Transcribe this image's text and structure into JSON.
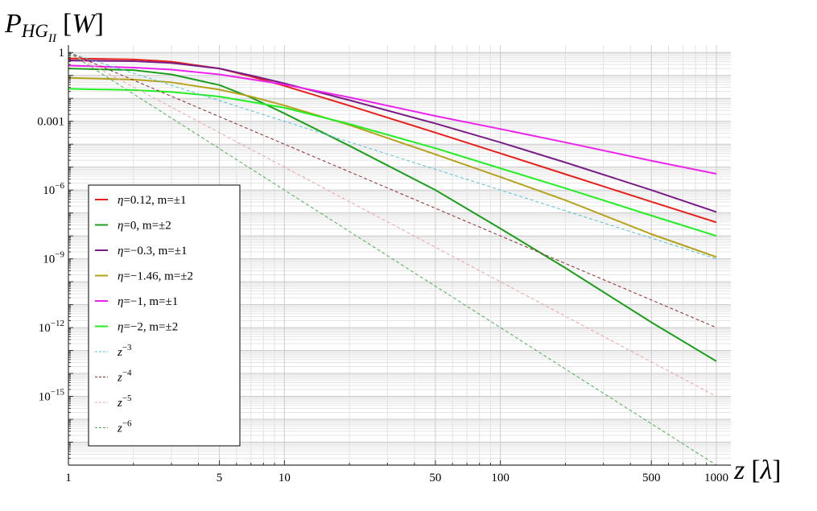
{
  "chart_data": {
    "type": "line",
    "title": "",
    "xlabel": {
      "var": "z",
      "unit": "λ"
    },
    "ylabel": {
      "var": "P",
      "sub": "HG",
      "subsub": "II",
      "unit": "W"
    },
    "x_scale": "log",
    "y_scale": "log",
    "xlim": [
      1,
      1000
    ],
    "ylim": [
      1e-18,
      1.3
    ],
    "grid": true,
    "legend_position": "left",
    "x_ticks": [
      {
        "value": 1,
        "label": "1"
      },
      {
        "value": 5,
        "label": "5"
      },
      {
        "value": 10,
        "label": "10"
      },
      {
        "value": 50,
        "label": "50"
      },
      {
        "value": 100,
        "label": "100"
      },
      {
        "value": 500,
        "label": "500"
      },
      {
        "value": 1000,
        "label": "1000"
      }
    ],
    "y_ticks": [
      {
        "value": 1,
        "label": "1",
        "base": "",
        "exp": ""
      },
      {
        "value": 0.001,
        "label": "0.001",
        "base": "",
        "exp": ""
      },
      {
        "value": 1e-06,
        "label": "",
        "base": "10",
        "exp": "−6"
      },
      {
        "value": 1e-09,
        "label": "",
        "base": "10",
        "exp": "−9"
      },
      {
        "value": 1e-12,
        "label": "",
        "base": "10",
        "exp": "−12"
      },
      {
        "value": 1e-15,
        "label": "",
        "base": "10",
        "exp": "−15"
      }
    ],
    "series": [
      {
        "name": "η=0.12, m=±1",
        "sym": "η",
        "rest": "=0.12, m=±1",
        "color": "#e8201c",
        "style": "solid",
        "x": [
          1,
          2,
          3,
          5,
          7,
          10,
          20,
          50,
          100,
          200,
          500,
          1000
        ],
        "y": [
          0.55,
          0.5,
          0.4,
          0.2,
          0.09,
          0.035,
          0.0048,
          0.00032,
          4e-05,
          4.9e-06,
          3.1e-07,
          3.9e-08
        ]
      },
      {
        "name": "η=0, m=±2",
        "sym": "η",
        "rest": "=0, m=±2",
        "color": "#1c9e1c",
        "style": "solid",
        "x": [
          1,
          2,
          3,
          5,
          7,
          10,
          20,
          50,
          100,
          200,
          500,
          1000
        ],
        "y": [
          0.2,
          0.17,
          0.11,
          0.038,
          0.011,
          0.0022,
          8.5e-05,
          1e-06,
          2.1e-08,
          4e-10,
          1.7e-12,
          3.4e-14
        ]
      },
      {
        "name": "η=−0.3, m=±1",
        "sym": "η",
        "rest": "=−0.3, m=±1",
        "color": "#7a1c86",
        "style": "solid",
        "x": [
          1,
          2,
          3,
          5,
          7,
          10,
          20,
          50,
          100,
          200,
          500,
          1000
        ],
        "y": [
          0.45,
          0.42,
          0.35,
          0.2,
          0.1,
          0.045,
          0.0083,
          0.0008,
          0.00012,
          1.6e-05,
          1e-06,
          1.1e-07
        ]
      },
      {
        "name": "η=−1.46, m=±2",
        "sym": "η",
        "rest": "=−1.46, m=±2",
        "color": "#b5a21c",
        "style": "solid",
        "x": [
          1,
          2,
          3,
          5,
          7,
          10,
          20,
          50,
          100,
          200,
          500,
          1000
        ],
        "y": [
          0.078,
          0.066,
          0.05,
          0.024,
          0.012,
          0.0049,
          0.00069,
          3.6e-05,
          3.7e-06,
          3.6e-07,
          1.2e-08,
          1.2e-09
        ]
      },
      {
        "name": "η=−1, m=±1",
        "sym": "η",
        "rest": "=−1, m=±1",
        "color": "#ee22ee",
        "style": "solid",
        "x": [
          1,
          2,
          3,
          5,
          7,
          10,
          20,
          50,
          100,
          200,
          500,
          1000
        ],
        "y": [
          0.27,
          0.22,
          0.18,
          0.11,
          0.068,
          0.04,
          0.011,
          0.0017,
          0.00046,
          0.00012,
          1.9e-05,
          5.1e-06
        ]
      },
      {
        "name": "η=−2, m=±2",
        "sym": "η",
        "rest": "=−2, m=±2",
        "color": "#22ee22",
        "style": "solid",
        "x": [
          1,
          2,
          3,
          5,
          7,
          10,
          20,
          50,
          100,
          200,
          500,
          1000
        ],
        "y": [
          0.026,
          0.023,
          0.019,
          0.012,
          0.007,
          0.0039,
          0.00076,
          6.7e-05,
          8.9e-06,
          1.2e-06,
          7.7e-08,
          1e-08
        ]
      },
      {
        "name": "z−3",
        "sym": "z",
        "rest": "",
        "exp": "−3",
        "color": "#4fc3cf",
        "style": "dashed",
        "x": [
          1,
          1000
        ],
        "y": [
          1.0,
          1e-09
        ]
      },
      {
        "name": "z−4",
        "sym": "z",
        "rest": "",
        "exp": "−4",
        "color": "#8b2a2a",
        "style": "dashed",
        "x": [
          1,
          1000
        ],
        "y": [
          1.0,
          1e-12
        ]
      },
      {
        "name": "z−5",
        "sym": "z",
        "rest": "",
        "exp": "−5",
        "color": "#f0a0a0",
        "style": "dashed",
        "x": [
          1,
          1000
        ],
        "y": [
          1.0,
          1e-15
        ]
      },
      {
        "name": "z−6",
        "sym": "z",
        "rest": "",
        "exp": "−6",
        "color": "#4caf50",
        "style": "dashed",
        "x": [
          1,
          1000
        ],
        "y": [
          1.0,
          1e-18
        ]
      }
    ]
  }
}
